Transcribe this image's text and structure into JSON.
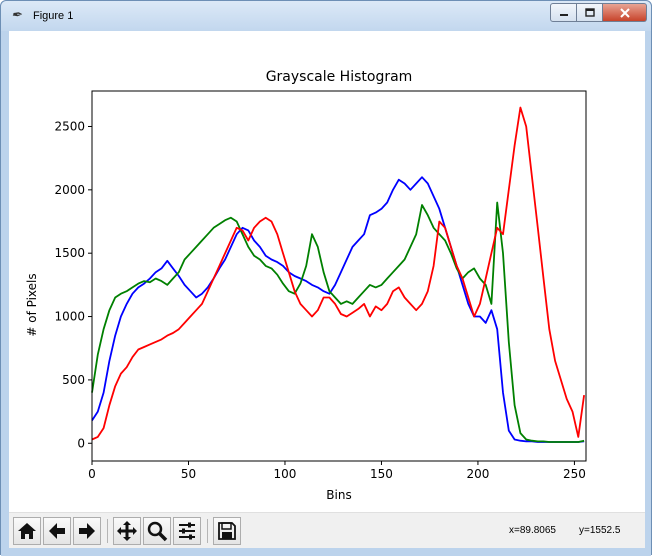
{
  "window": {
    "title": "Figure 1",
    "app_icon": "feather-icon",
    "controls": {
      "minimize_icon": "minimize-icon",
      "maximize_icon": "maximize-icon",
      "close_icon": "close-icon"
    }
  },
  "toolbar": {
    "buttons": [
      {
        "name": "home",
        "icon": "home-icon"
      },
      {
        "name": "back",
        "icon": "arrow-left-icon"
      },
      {
        "name": "forward",
        "icon": "arrow-right-icon"
      },
      {
        "name": "pan",
        "icon": "move-icon"
      },
      {
        "name": "zoom",
        "icon": "zoom-icon"
      },
      {
        "name": "configure-subplots",
        "icon": "sliders-icon"
      },
      {
        "name": "save",
        "icon": "save-icon"
      }
    ],
    "coords": {
      "x_text": "x=89.8065",
      "y_text": "y=1552.5"
    }
  },
  "chart_data": {
    "type": "line",
    "title": "Grayscale Histogram",
    "xlabel": "Bins",
    "ylabel": "# of Pixels",
    "xlim": [
      0,
      256
    ],
    "ylim": [
      -140,
      2780
    ],
    "xticks": [
      0,
      50,
      100,
      150,
      200,
      250
    ],
    "yticks": [
      0,
      500,
      1000,
      1500,
      2000,
      2500
    ],
    "grid": false,
    "legend": "none",
    "series": [
      {
        "color": "#0000ff",
        "x": [
          0,
          3,
          6,
          9,
          12,
          15,
          18,
          21,
          24,
          27,
          30,
          33,
          36,
          39,
          42,
          45,
          48,
          51,
          54,
          57,
          60,
          63,
          66,
          69,
          72,
          75,
          78,
          81,
          84,
          87,
          90,
          93,
          96,
          99,
          102,
          105,
          108,
          111,
          114,
          117,
          120,
          123,
          126,
          129,
          132,
          135,
          138,
          141,
          144,
          147,
          150,
          153,
          156,
          159,
          162,
          165,
          168,
          171,
          174,
          177,
          180,
          183,
          186,
          189,
          192,
          195,
          198,
          201,
          204,
          207,
          210,
          213,
          216,
          219,
          222,
          225,
          228,
          231,
          234,
          237,
          240,
          243,
          246,
          249,
          252,
          255
        ],
        "y": [
          180,
          250,
          400,
          650,
          850,
          1000,
          1100,
          1180,
          1230,
          1260,
          1300,
          1350,
          1380,
          1440,
          1380,
          1320,
          1250,
          1200,
          1150,
          1180,
          1230,
          1300,
          1380,
          1450,
          1550,
          1650,
          1700,
          1680,
          1600,
          1550,
          1480,
          1450,
          1430,
          1400,
          1350,
          1320,
          1300,
          1280,
          1250,
          1230,
          1200,
          1180,
          1250,
          1350,
          1450,
          1550,
          1600,
          1650,
          1800,
          1820,
          1850,
          1900,
          2000,
          2080,
          2050,
          2000,
          2050,
          2100,
          2050,
          1950,
          1850,
          1700,
          1550,
          1400,
          1250,
          1100,
          1000,
          1000,
          950,
          1050,
          900,
          400,
          100,
          30,
          20,
          15,
          15,
          10,
          10,
          10,
          10,
          10,
          10,
          10,
          10,
          15
        ]
      },
      {
        "color": "#008000",
        "x": [
          0,
          3,
          6,
          9,
          12,
          15,
          18,
          21,
          24,
          27,
          30,
          33,
          36,
          39,
          42,
          45,
          48,
          51,
          54,
          57,
          60,
          63,
          66,
          69,
          72,
          75,
          78,
          81,
          84,
          87,
          90,
          93,
          96,
          99,
          102,
          105,
          108,
          111,
          114,
          117,
          120,
          123,
          126,
          129,
          132,
          135,
          138,
          141,
          144,
          147,
          150,
          153,
          156,
          159,
          162,
          165,
          168,
          171,
          174,
          177,
          180,
          183,
          186,
          189,
          192,
          195,
          198,
          201,
          204,
          207,
          210,
          213,
          216,
          219,
          222,
          225,
          228,
          231,
          234,
          237,
          240,
          243,
          246,
          249,
          252,
          255
        ],
        "y": [
          400,
          700,
          900,
          1050,
          1150,
          1180,
          1200,
          1230,
          1260,
          1280,
          1270,
          1300,
          1280,
          1250,
          1300,
          1350,
          1450,
          1500,
          1550,
          1600,
          1650,
          1700,
          1730,
          1760,
          1780,
          1750,
          1650,
          1550,
          1480,
          1450,
          1400,
          1380,
          1330,
          1260,
          1200,
          1180,
          1260,
          1400,
          1650,
          1550,
          1350,
          1200,
          1150,
          1100,
          1120,
          1100,
          1150,
          1200,
          1250,
          1230,
          1250,
          1300,
          1350,
          1400,
          1450,
          1550,
          1650,
          1880,
          1800,
          1700,
          1650,
          1600,
          1500,
          1380,
          1300,
          1350,
          1380,
          1300,
          1250,
          1100,
          1900,
          1500,
          800,
          300,
          80,
          30,
          20,
          15,
          15,
          10,
          10,
          10,
          10,
          10,
          10,
          20
        ]
      },
      {
        "color": "#ff0000",
        "x": [
          0,
          3,
          6,
          9,
          12,
          15,
          18,
          21,
          24,
          27,
          30,
          33,
          36,
          39,
          42,
          45,
          48,
          51,
          54,
          57,
          60,
          63,
          66,
          69,
          72,
          75,
          78,
          81,
          84,
          87,
          90,
          93,
          96,
          99,
          102,
          105,
          108,
          111,
          114,
          117,
          120,
          123,
          126,
          129,
          132,
          135,
          138,
          141,
          144,
          147,
          150,
          153,
          156,
          159,
          162,
          165,
          168,
          171,
          174,
          177,
          180,
          183,
          186,
          189,
          192,
          195,
          198,
          201,
          204,
          207,
          210,
          213,
          216,
          219,
          222,
          225,
          228,
          231,
          234,
          237,
          240,
          243,
          246,
          249,
          252,
          255
        ],
        "y": [
          30,
          50,
          120,
          300,
          450,
          550,
          600,
          680,
          740,
          760,
          780,
          800,
          820,
          850,
          870,
          900,
          950,
          1000,
          1050,
          1100,
          1200,
          1300,
          1400,
          1500,
          1600,
          1700,
          1680,
          1600,
          1700,
          1750,
          1780,
          1750,
          1650,
          1500,
          1350,
          1200,
          1100,
          1050,
          1000,
          1050,
          1150,
          1150,
          1100,
          1020,
          1000,
          1030,
          1060,
          1100,
          1000,
          1080,
          1050,
          1100,
          1200,
          1230,
          1150,
          1100,
          1050,
          1100,
          1200,
          1400,
          1750,
          1700,
          1550,
          1400,
          1300,
          1150,
          1000,
          1100,
          1300,
          1500,
          1700,
          1650,
          2000,
          2350,
          2650,
          2500,
          2100,
          1700,
          1300,
          900,
          650,
          500,
          350,
          250,
          50,
          380
        ]
      }
    ]
  }
}
